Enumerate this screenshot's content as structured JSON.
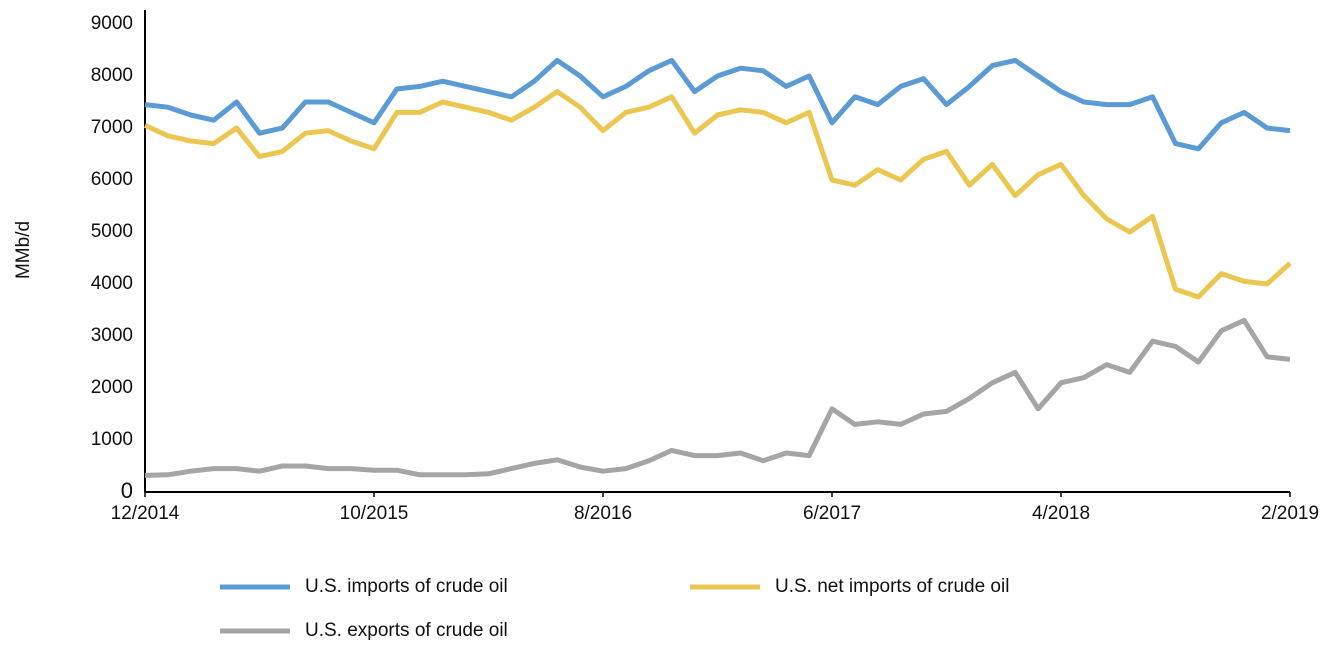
{
  "chart_data": {
    "type": "line",
    "y_label": "MMb/d",
    "x": [
      "12/2014",
      "1/2015",
      "2/2015",
      "3/2015",
      "4/2015",
      "5/2015",
      "6/2015",
      "7/2015",
      "8/2015",
      "9/2015",
      "10/2015",
      "11/2015",
      "12/2015",
      "1/2016",
      "2/2016",
      "3/2016",
      "4/2016",
      "5/2016",
      "6/2016",
      "7/2016",
      "8/2016",
      "9/2016",
      "10/2016",
      "11/2016",
      "12/2016",
      "1/2017",
      "2/2017",
      "3/2017",
      "4/2017",
      "5/2017",
      "6/2017",
      "7/2017",
      "8/2017",
      "9/2017",
      "10/2017",
      "11/2017",
      "12/2017",
      "1/2018",
      "2/2018",
      "3/2018",
      "4/2018",
      "5/2018",
      "6/2018",
      "7/2018",
      "8/2018",
      "9/2018",
      "10/2018",
      "11/2018",
      "12/2018",
      "1/2019",
      "2/2019"
    ],
    "xticks": [
      "12/2014",
      "10/2015",
      "8/2016",
      "6/2017",
      "4/2018",
      "2/2019"
    ],
    "ylim": [
      0,
      9000
    ],
    "yticks": [
      0,
      1000,
      2000,
      3000,
      4000,
      5000,
      6000,
      7000,
      8000,
      9000
    ],
    "grid": false,
    "legend": "bottom",
    "series": [
      {
        "name": "U.S. imports of crude oil",
        "color": "#5b9bd5",
        "values": [
          7450,
          7400,
          7250,
          7150,
          7500,
          6900,
          7000,
          7500,
          7500,
          7300,
          7100,
          7750,
          7800,
          7900,
          7800,
          7700,
          7600,
          7900,
          8300,
          8000,
          7600,
          7800,
          8100,
          8300,
          7700,
          8000,
          8150,
          8100,
          7800,
          8000,
          7100,
          7600,
          7450,
          7800,
          7950,
          7450,
          7800,
          8200,
          8300,
          8000,
          7700,
          7500,
          7450,
          7450,
          7600,
          6700,
          6600,
          7100,
          7300,
          7000,
          6950
        ]
      },
      {
        "name": "U.S. net imports of crude oil",
        "color": "#ebc651",
        "values": [
          7050,
          6850,
          6750,
          6700,
          7000,
          6450,
          6550,
          6900,
          6950,
          6750,
          6600,
          7300,
          7300,
          7500,
          7400,
          7300,
          7150,
          7400,
          7700,
          7400,
          6950,
          7300,
          7400,
          7600,
          6900,
          7250,
          7350,
          7300,
          7100,
          7300,
          6000,
          5900,
          6200,
          6000,
          6400,
          6550,
          5900,
          6300,
          5700,
          6100,
          6300,
          5700,
          5250,
          5000,
          5300,
          3900,
          3750,
          4200,
          4050,
          4000,
          4400
        ]
      },
      {
        "name": "U.S. exports of crude oil",
        "color": "#a5a5a5",
        "values": [
          320,
          330,
          400,
          450,
          450,
          400,
          500,
          500,
          450,
          450,
          420,
          420,
          330,
          330,
          330,
          350,
          450,
          550,
          620,
          480,
          400,
          450,
          600,
          800,
          700,
          700,
          750,
          600,
          750,
          700,
          1600,
          1300,
          1350,
          1300,
          1500,
          1550,
          1800,
          2100,
          2300,
          1600,
          2100,
          2200,
          2450,
          2300,
          2900,
          2800,
          2500,
          3100,
          3300,
          2600,
          2550
        ]
      }
    ]
  }
}
